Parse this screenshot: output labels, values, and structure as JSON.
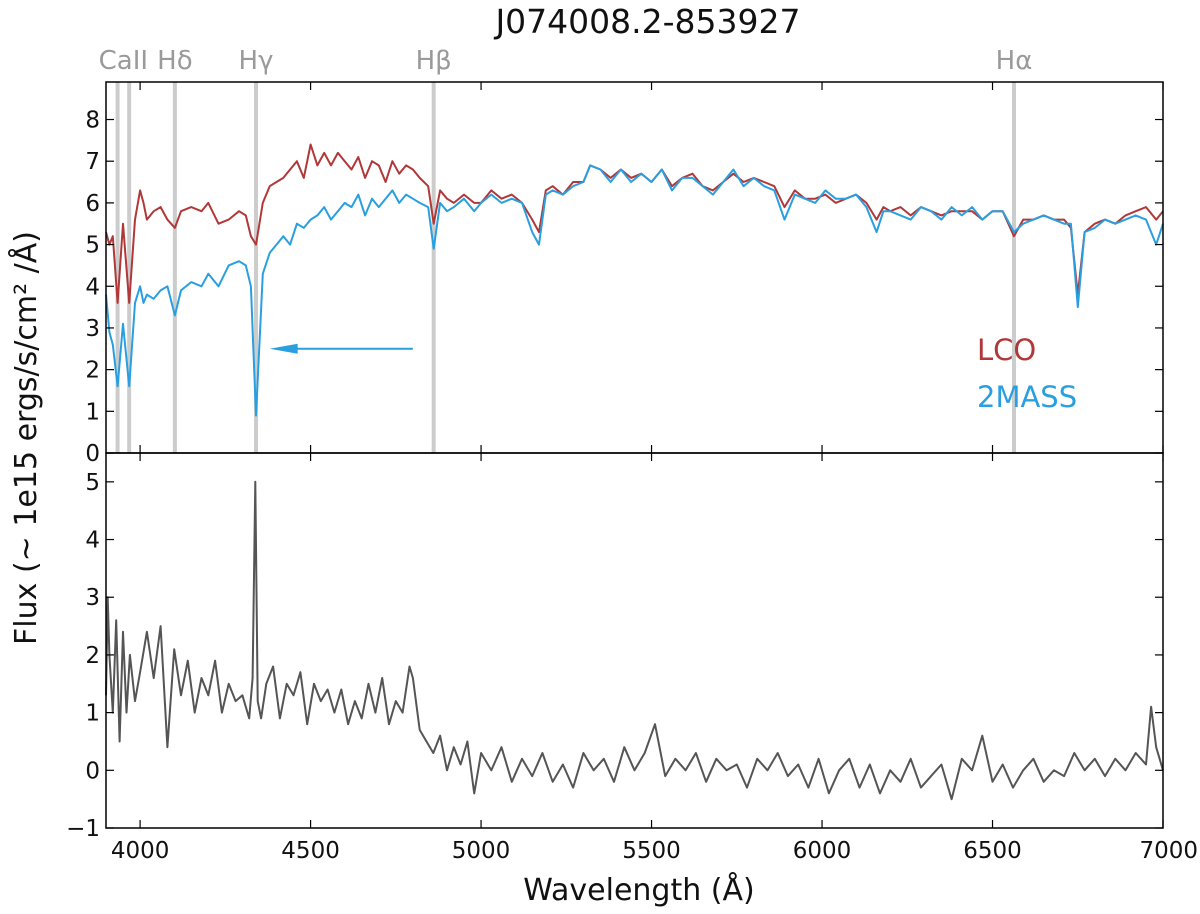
{
  "chart_data": [
    {
      "type": "line",
      "title": "J074008.2-853927",
      "ylabel": "Flux  (~ 1e15 ergs/s/cm² /Å)",
      "xlim": [
        3900,
        7000
      ],
      "ylim": [
        0,
        8.9
      ],
      "x_ticks": [
        4000,
        4500,
        5000,
        5500,
        6000,
        6500,
        7000
      ],
      "y_ticks": [
        0,
        1,
        2,
        3,
        4,
        5,
        6,
        7,
        8
      ],
      "grid": false,
      "legend": "right",
      "line_markers": [
        {
          "label": "CaII",
          "x": [
            3934,
            3968
          ]
        },
        {
          "label": "Hδ",
          "x": [
            4102
          ]
        },
        {
          "label": "Hγ",
          "x": [
            4340
          ]
        },
        {
          "label": "Hβ",
          "x": [
            4861
          ]
        },
        {
          "label": "Hα",
          "x": [
            6563
          ]
        }
      ],
      "annotation_arrow": {
        "from": [
          4800,
          2.5
        ],
        "to": [
          4380,
          2.5
        ]
      },
      "series": [
        {
          "name": "LCO",
          "color": "#b03838",
          "x": [
            3900,
            3910,
            3920,
            3934,
            3950,
            3968,
            3985,
            4000,
            4010,
            4020,
            4040,
            4060,
            4080,
            4102,
            4120,
            4150,
            4180,
            4200,
            4230,
            4260,
            4290,
            4310,
            4325,
            4340,
            4360,
            4380,
            4400,
            4420,
            4440,
            4460,
            4480,
            4500,
            4520,
            4540,
            4560,
            4580,
            4600,
            4620,
            4640,
            4660,
            4680,
            4700,
            4720,
            4740,
            4760,
            4780,
            4800,
            4820,
            4845,
            4861,
            4880,
            4900,
            4920,
            4950,
            4980,
            5000,
            5030,
            5060,
            5090,
            5120,
            5150,
            5170,
            5190,
            5210,
            5240,
            5270,
            5300,
            5320,
            5350,
            5380,
            5410,
            5440,
            5470,
            5500,
            5530,
            5560,
            5590,
            5620,
            5650,
            5680,
            5710,
            5740,
            5770,
            5800,
            5830,
            5860,
            5890,
            5920,
            5950,
            5980,
            6010,
            6040,
            6070,
            6100,
            6130,
            6160,
            6180,
            6200,
            6230,
            6260,
            6290,
            6320,
            6350,
            6380,
            6410,
            6440,
            6470,
            6500,
            6530,
            6563,
            6590,
            6620,
            6650,
            6680,
            6710,
            6730,
            6750,
            6770,
            6800,
            6830,
            6860,
            6890,
            6920,
            6950,
            6980,
            7000
          ],
          "y": [
            5.3,
            5.0,
            5.2,
            3.6,
            5.5,
            3.6,
            5.6,
            6.3,
            6.0,
            5.6,
            5.8,
            5.9,
            5.6,
            5.4,
            5.8,
            5.9,
            5.8,
            6.0,
            5.5,
            5.6,
            5.8,
            5.7,
            5.2,
            5.0,
            6.0,
            6.4,
            6.5,
            6.6,
            6.8,
            7.0,
            6.6,
            7.4,
            6.9,
            7.2,
            6.9,
            7.2,
            7.0,
            6.8,
            7.1,
            6.6,
            7.0,
            6.9,
            6.5,
            7.0,
            6.7,
            6.9,
            6.8,
            6.6,
            6.4,
            5.5,
            6.3,
            6.1,
            6.0,
            6.2,
            6.0,
            6.0,
            6.3,
            6.1,
            6.2,
            6.0,
            5.6,
            5.3,
            6.3,
            6.4,
            6.2,
            6.5,
            6.5,
            6.9,
            6.8,
            6.6,
            6.8,
            6.6,
            6.7,
            6.5,
            6.8,
            6.4,
            6.6,
            6.7,
            6.4,
            6.3,
            6.5,
            6.7,
            6.5,
            6.6,
            6.5,
            6.4,
            5.9,
            6.3,
            6.1,
            6.1,
            6.2,
            6.0,
            6.1,
            6.2,
            6.0,
            5.6,
            5.9,
            5.8,
            5.9,
            5.7,
            5.9,
            5.8,
            5.7,
            5.8,
            5.8,
            5.8,
            5.6,
            5.8,
            5.8,
            5.2,
            5.6,
            5.6,
            5.7,
            5.6,
            5.6,
            5.4,
            3.8,
            5.3,
            5.5,
            5.6,
            5.5,
            5.7,
            5.8,
            5.9,
            5.6,
            5.8
          ]
        },
        {
          "name": "2MASS",
          "color": "#2a9fe0",
          "x": [
            3900,
            3910,
            3920,
            3934,
            3950,
            3968,
            3985,
            4000,
            4010,
            4020,
            4040,
            4060,
            4080,
            4102,
            4120,
            4150,
            4180,
            4200,
            4230,
            4260,
            4290,
            4310,
            4325,
            4340,
            4360,
            4380,
            4400,
            4420,
            4440,
            4460,
            4480,
            4500,
            4520,
            4540,
            4560,
            4580,
            4600,
            4620,
            4640,
            4660,
            4680,
            4700,
            4720,
            4740,
            4760,
            4780,
            4800,
            4820,
            4845,
            4861,
            4880,
            4900,
            4920,
            4950,
            4980,
            5000,
            5030,
            5060,
            5090,
            5120,
            5150,
            5170,
            5190,
            5210,
            5240,
            5270,
            5300,
            5320,
            5350,
            5380,
            5410,
            5440,
            5470,
            5500,
            5530,
            5560,
            5590,
            5620,
            5650,
            5680,
            5710,
            5740,
            5770,
            5800,
            5830,
            5860,
            5890,
            5920,
            5950,
            5980,
            6010,
            6040,
            6070,
            6100,
            6130,
            6160,
            6180,
            6200,
            6230,
            6260,
            6290,
            6320,
            6350,
            6380,
            6410,
            6440,
            6470,
            6500,
            6530,
            6563,
            6590,
            6620,
            6650,
            6680,
            6710,
            6730,
            6750,
            6770,
            6800,
            6830,
            6860,
            6890,
            6920,
            6950,
            6980,
            7000
          ],
          "y": [
            3.8,
            2.9,
            2.6,
            1.6,
            3.1,
            1.6,
            3.6,
            4.0,
            3.6,
            3.8,
            3.7,
            3.9,
            4.0,
            3.3,
            3.9,
            4.1,
            4.0,
            4.3,
            4.0,
            4.5,
            4.6,
            4.5,
            4.0,
            0.9,
            4.3,
            4.8,
            5.0,
            5.2,
            5.0,
            5.5,
            5.4,
            5.6,
            5.7,
            5.9,
            5.6,
            5.8,
            6.0,
            5.9,
            6.2,
            5.7,
            6.1,
            5.9,
            6.1,
            6.3,
            6.0,
            6.2,
            6.1,
            6.0,
            5.9,
            4.9,
            6.0,
            5.8,
            5.9,
            6.1,
            5.8,
            6.0,
            6.2,
            6.0,
            6.1,
            6.0,
            5.3,
            5.0,
            6.2,
            6.3,
            6.2,
            6.4,
            6.5,
            6.9,
            6.8,
            6.5,
            6.8,
            6.5,
            6.7,
            6.5,
            6.8,
            6.3,
            6.6,
            6.6,
            6.4,
            6.2,
            6.5,
            6.8,
            6.4,
            6.6,
            6.4,
            6.3,
            5.6,
            6.2,
            6.1,
            6.0,
            6.3,
            6.1,
            6.1,
            6.2,
            5.9,
            5.3,
            5.8,
            5.8,
            5.7,
            5.6,
            5.9,
            5.8,
            5.6,
            5.9,
            5.7,
            5.9,
            5.6,
            5.8,
            5.8,
            5.3,
            5.5,
            5.6,
            5.7,
            5.6,
            5.5,
            5.5,
            3.5,
            5.3,
            5.4,
            5.6,
            5.5,
            5.6,
            5.7,
            5.6,
            5.0,
            5.5
          ]
        }
      ],
      "legend_labels": {
        "lco": "LCO",
        "twomass": "2MASS"
      }
    },
    {
      "type": "line",
      "xlabel": "Wavelength (Å)",
      "xlim": [
        3900,
        7000
      ],
      "ylim": [
        -1,
        5.5
      ],
      "x_ticks": [
        4000,
        4500,
        5000,
        5500,
        6000,
        6500,
        7000
      ],
      "y_ticks": [
        -1,
        0,
        1,
        2,
        3,
        4,
        5
      ],
      "grid": false,
      "series": [
        {
          "color": "#555555",
          "x": [
            3900,
            3905,
            3910,
            3920,
            3930,
            3940,
            3950,
            3960,
            3970,
            3985,
            4000,
            4020,
            4040,
            4060,
            4080,
            4100,
            4120,
            4140,
            4160,
            4180,
            4200,
            4220,
            4240,
            4260,
            4280,
            4300,
            4320,
            4330,
            4338,
            4345,
            4355,
            4370,
            4390,
            4410,
            4430,
            4450,
            4470,
            4490,
            4510,
            4530,
            4550,
            4570,
            4590,
            4610,
            4630,
            4650,
            4670,
            4690,
            4710,
            4730,
            4750,
            4770,
            4790,
            4800,
            4820,
            4840,
            4860,
            4880,
            4900,
            4920,
            4940,
            4960,
            4980,
            5000,
            5030,
            5060,
            5090,
            5120,
            5150,
            5180,
            5210,
            5240,
            5270,
            5300,
            5330,
            5360,
            5390,
            5420,
            5450,
            5480,
            5510,
            5540,
            5570,
            5600,
            5630,
            5660,
            5690,
            5720,
            5750,
            5780,
            5810,
            5840,
            5870,
            5900,
            5930,
            5960,
            5990,
            6020,
            6050,
            6080,
            6110,
            6140,
            6170,
            6200,
            6230,
            6260,
            6290,
            6320,
            6350,
            6380,
            6410,
            6440,
            6470,
            6500,
            6530,
            6560,
            6590,
            6620,
            6650,
            6680,
            6710,
            6740,
            6770,
            6800,
            6830,
            6860,
            6890,
            6920,
            6950,
            6965,
            6980,
            7000
          ],
          "y": [
            1.3,
            3.0,
            2.0,
            1.0,
            2.6,
            0.5,
            2.4,
            1.0,
            2.0,
            1.2,
            1.7,
            2.4,
            1.6,
            2.5,
            0.4,
            2.1,
            1.3,
            1.9,
            1.0,
            1.6,
            1.3,
            1.9,
            1.0,
            1.5,
            1.2,
            1.3,
            0.9,
            1.6,
            5.0,
            1.2,
            0.9,
            1.5,
            1.8,
            0.9,
            1.5,
            1.3,
            1.7,
            0.8,
            1.5,
            1.2,
            1.4,
            1.0,
            1.4,
            0.8,
            1.2,
            0.9,
            1.5,
            1.0,
            1.6,
            0.8,
            1.2,
            1.0,
            1.8,
            1.6,
            0.7,
            0.5,
            0.3,
            0.6,
            0.0,
            0.4,
            0.1,
            0.5,
            -0.4,
            0.3,
            0.0,
            0.4,
            -0.2,
            0.2,
            -0.1,
            0.3,
            -0.2,
            0.1,
            -0.3,
            0.3,
            0.0,
            0.2,
            -0.2,
            0.4,
            0.0,
            0.3,
            0.8,
            -0.1,
            0.2,
            0.0,
            0.3,
            -0.2,
            0.2,
            0.0,
            0.1,
            -0.3,
            0.2,
            0.0,
            0.3,
            -0.1,
            0.1,
            -0.3,
            0.2,
            -0.4,
            0.0,
            0.2,
            -0.3,
            0.1,
            -0.4,
            0.0,
            -0.2,
            0.2,
            -0.3,
            -0.1,
            0.1,
            -0.5,
            0.2,
            0.0,
            0.6,
            -0.2,
            0.1,
            -0.3,
            0.0,
            0.2,
            -0.2,
            0.0,
            -0.1,
            0.3,
            0.0,
            0.2,
            -0.1,
            0.2,
            0.0,
            0.3,
            0.1,
            1.1,
            0.4,
            0.0
          ]
        }
      ]
    }
  ]
}
